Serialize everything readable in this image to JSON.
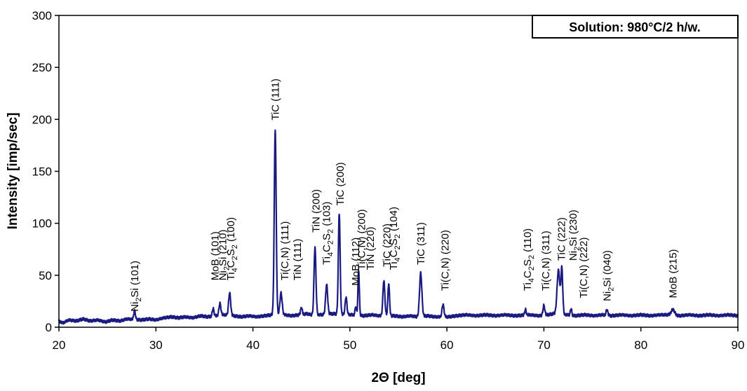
{
  "chart_data": {
    "type": "line",
    "xlabel": "2Θ [deg]",
    "ylabel": "Intensity [imp/sec]",
    "xlim": [
      20,
      90
    ],
    "ylim": [
      0,
      300
    ],
    "x_ticks": [
      20,
      30,
      40,
      50,
      60,
      70,
      80,
      90
    ],
    "y_ticks": [
      0,
      50,
      100,
      150,
      200,
      250,
      300
    ],
    "grid": false,
    "legend_box": "Solution: 980°C/2 h/w.",
    "legend_position": "top-right",
    "line_color": "#1a1a80",
    "baseline": [
      [
        20.0,
        6
      ],
      [
        20.4,
        4
      ],
      [
        21.0,
        7
      ],
      [
        21.8,
        6
      ],
      [
        22.5,
        8
      ],
      [
        23.2,
        6
      ],
      [
        24.0,
        7
      ],
      [
        24.8,
        5
      ],
      [
        25.5,
        7
      ],
      [
        26.3,
        6
      ],
      [
        27.0,
        8
      ],
      [
        28.5,
        7
      ],
      [
        29.3,
        8
      ],
      [
        30.0,
        7
      ],
      [
        30.8,
        9
      ],
      [
        31.6,
        10
      ],
      [
        32.3,
        9
      ],
      [
        33.0,
        10
      ],
      [
        33.8,
        9
      ],
      [
        34.6,
        11
      ],
      [
        35.3,
        10
      ],
      [
        36.2,
        11
      ],
      [
        37.0,
        12
      ],
      [
        38.0,
        11
      ],
      [
        38.8,
        10
      ],
      [
        39.6,
        11
      ],
      [
        40.4,
        10
      ],
      [
        41.2,
        11
      ],
      [
        42.0,
        12
      ],
      [
        43.2,
        12
      ],
      [
        44.0,
        11
      ],
      [
        44.8,
        12
      ],
      [
        45.6,
        13
      ],
      [
        46.0,
        12
      ],
      [
        47.0,
        12
      ],
      [
        48.2,
        13
      ],
      [
        50.2,
        12
      ],
      [
        51.4,
        11
      ],
      [
        52.3,
        12
      ],
      [
        53.0,
        11
      ],
      [
        54.6,
        11
      ],
      [
        55.4,
        10
      ],
      [
        56.2,
        11
      ],
      [
        57.0,
        10
      ],
      [
        58.0,
        11
      ],
      [
        58.8,
        10
      ],
      [
        60.2,
        10
      ],
      [
        61.0,
        11
      ],
      [
        62.0,
        12
      ],
      [
        63.0,
        11
      ],
      [
        64.0,
        12
      ],
      [
        65.0,
        11
      ],
      [
        66.0,
        12
      ],
      [
        67.0,
        11
      ],
      [
        68.5,
        12
      ],
      [
        69.5,
        11
      ],
      [
        70.4,
        12
      ],
      [
        71.0,
        13
      ],
      [
        72.4,
        12
      ],
      [
        73.2,
        11
      ],
      [
        74.2,
        12
      ],
      [
        75.2,
        11
      ],
      [
        76.0,
        12
      ],
      [
        77.0,
        11
      ],
      [
        78.0,
        12
      ],
      [
        79.0,
        11
      ],
      [
        80.0,
        12
      ],
      [
        81.0,
        11
      ],
      [
        82.0,
        12
      ],
      [
        82.8,
        12
      ],
      [
        84.0,
        11
      ],
      [
        85.0,
        12
      ],
      [
        86.0,
        11
      ],
      [
        87.0,
        12
      ],
      [
        88.0,
        11
      ],
      [
        89.0,
        12
      ],
      [
        90.0,
        11
      ]
    ],
    "peaks": [
      {
        "x": 27.8,
        "y": 16,
        "w": 0.12
      },
      {
        "x": 35.9,
        "y": 18,
        "w": 0.12
      },
      {
        "x": 36.6,
        "y": 23,
        "w": 0.14
      },
      {
        "x": 37.6,
        "y": 33,
        "w": 0.15
      },
      {
        "x": 42.3,
        "y": 190,
        "w": 0.14
      },
      {
        "x": 42.9,
        "y": 33,
        "w": 0.16
      },
      {
        "x": 45.0,
        "y": 19,
        "w": 0.12
      },
      {
        "x": 46.4,
        "y": 77,
        "w": 0.14
      },
      {
        "x": 47.6,
        "y": 41,
        "w": 0.15
      },
      {
        "x": 48.9,
        "y": 110,
        "w": 0.13
      },
      {
        "x": 49.6,
        "y": 29,
        "w": 0.13
      },
      {
        "x": 50.6,
        "y": 20,
        "w": 0.1
      },
      {
        "x": 50.9,
        "y": 55,
        "w": 0.1
      },
      {
        "x": 53.5,
        "y": 45,
        "w": 0.14
      },
      {
        "x": 54.0,
        "y": 42,
        "w": 0.12
      },
      {
        "x": 57.3,
        "y": 52,
        "w": 0.17
      },
      {
        "x": 59.6,
        "y": 22,
        "w": 0.14
      },
      {
        "x": 68.1,
        "y": 17,
        "w": 0.11
      },
      {
        "x": 70.0,
        "y": 21,
        "w": 0.13
      },
      {
        "x": 71.5,
        "y": 55,
        "w": 0.2
      },
      {
        "x": 71.85,
        "y": 56,
        "w": 0.13
      },
      {
        "x": 72.8,
        "y": 18,
        "w": 0.1
      },
      {
        "x": 76.5,
        "y": 17,
        "w": 0.12
      },
      {
        "x": 83.3,
        "y": 17,
        "w": 0.25
      }
    ],
    "annotations": [
      {
        "x": 27.8,
        "y": 15,
        "parts": [
          [
            "Ni",
            0
          ],
          [
            "2",
            1
          ],
          [
            "Si (101)",
            0
          ]
        ]
      },
      {
        "x": 36.1,
        "y": 45,
        "parts": [
          [
            "MoB (101)",
            0
          ]
        ]
      },
      {
        "x": 36.9,
        "y": 45,
        "parts": [
          [
            "Ni",
            0
          ],
          [
            "2",
            1
          ],
          [
            "Si (210)",
            0
          ]
        ]
      },
      {
        "x": 37.7,
        "y": 45,
        "parts": [
          [
            "Ti",
            0
          ],
          [
            "4",
            1
          ],
          [
            "C",
            0
          ],
          [
            "2",
            1
          ],
          [
            "S",
            0
          ],
          [
            "2",
            1
          ],
          [
            " (100)",
            0
          ]
        ]
      },
      {
        "x": 42.3,
        "y": 199,
        "parts": [
          [
            "TiC (111)",
            0
          ]
        ]
      },
      {
        "x": 43.3,
        "y": 45,
        "parts": [
          [
            "Ti(C,N) (111)",
            0
          ]
        ]
      },
      {
        "x": 44.6,
        "y": 45,
        "parts": [
          [
            "TiN (111)",
            0
          ]
        ]
      },
      {
        "x": 46.5,
        "y": 91,
        "parts": [
          [
            "TiN (200)",
            0
          ]
        ]
      },
      {
        "x": 47.6,
        "y": 60,
        "parts": [
          [
            "Ti",
            0
          ],
          [
            "4",
            1
          ],
          [
            "C",
            0
          ],
          [
            "2",
            1
          ],
          [
            "S",
            0
          ],
          [
            "2",
            1
          ],
          [
            " (103)",
            0
          ]
        ]
      },
      {
        "x": 49.0,
        "y": 117,
        "parts": [
          [
            "TiC (200)",
            0
          ]
        ]
      },
      {
        "x": 50.6,
        "y": 40,
        "parts": [
          [
            "MoB (112)",
            0
          ]
        ]
      },
      {
        "x": 51.2,
        "y": 55,
        "parts": [
          [
            "Ti(C,N) (200)",
            0
          ]
        ]
      },
      {
        "x": 52.1,
        "y": 55,
        "parts": [
          [
            "TiN (220)",
            0
          ]
        ]
      },
      {
        "x": 53.8,
        "y": 58,
        "parts": [
          [
            "TiC (220)",
            0
          ]
        ]
      },
      {
        "x": 54.5,
        "y": 55,
        "parts": [
          [
            "Ti",
            0
          ],
          [
            "4",
            1
          ],
          [
            "C",
            0
          ],
          [
            "2",
            1
          ],
          [
            "S",
            0
          ],
          [
            "2",
            1
          ],
          [
            " (104)",
            0
          ]
        ]
      },
      {
        "x": 57.3,
        "y": 60,
        "parts": [
          [
            "TiC (311)",
            0
          ]
        ]
      },
      {
        "x": 59.8,
        "y": 35,
        "parts": [
          [
            "Ti(C,N) (220)",
            0
          ]
        ]
      },
      {
        "x": 68.3,
        "y": 35,
        "parts": [
          [
            "Ti",
            0
          ],
          [
            "4",
            1
          ],
          [
            "C",
            0
          ],
          [
            "2",
            1
          ],
          [
            "S",
            0
          ],
          [
            "2",
            1
          ],
          [
            " (110)",
            0
          ]
        ]
      },
      {
        "x": 70.2,
        "y": 35,
        "parts": [
          [
            "Ti(C,N) (311)",
            0
          ]
        ]
      },
      {
        "x": 71.8,
        "y": 64,
        "parts": [
          [
            "TiC (222)",
            0
          ]
        ]
      },
      {
        "x": 73.0,
        "y": 64,
        "parts": [
          [
            "Ni",
            0
          ],
          [
            "2",
            1
          ],
          [
            "Si (230)",
            0
          ]
        ]
      },
      {
        "x": 74.1,
        "y": 28,
        "parts": [
          [
            "Ti(C,N) (222)",
            0
          ]
        ]
      },
      {
        "x": 76.5,
        "y": 25,
        "parts": [
          [
            "Ni",
            0
          ],
          [
            "2",
            1
          ],
          [
            "Si (040)",
            0
          ]
        ]
      },
      {
        "x": 83.3,
        "y": 28,
        "parts": [
          [
            "MoB (215)",
            0
          ]
        ]
      }
    ]
  }
}
